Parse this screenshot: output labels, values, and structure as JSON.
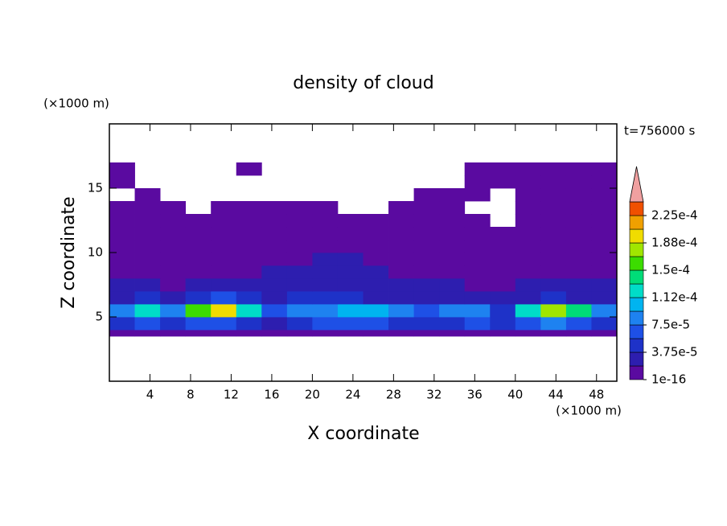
{
  "chart_data": {
    "type": "contour",
    "title": "density of cloud",
    "xlabel": "X coordinate",
    "ylabel": "Z coordinate",
    "x_unit_label": "(×1000 m)",
    "y_unit_label": "(×1000 m)",
    "time_label": "t=756000 s",
    "xlim": [
      0,
      50
    ],
    "ylim": [
      0,
      20
    ],
    "xticks": [
      4,
      8,
      12,
      16,
      20,
      24,
      28,
      32,
      36,
      40,
      44,
      48
    ],
    "yticks": [
      5,
      10,
      15
    ],
    "x_edges": [
      0,
      2.5,
      5,
      7.5,
      10,
      12.5,
      15,
      17.5,
      20,
      22.5,
      25,
      27.5,
      30,
      32.5,
      35,
      37.5,
      40,
      42.5,
      45,
      47.5,
      50
    ],
    "z_edges": [
      3.5,
      4,
      5,
      6,
      7,
      8,
      9,
      10,
      11,
      12,
      13,
      14,
      15,
      16,
      17
    ],
    "field": [
      [
        8e-06,
        8e-06,
        8e-06,
        8e-06,
        8e-06,
        8e-06,
        8e-06,
        8e-06,
        8e-06,
        8e-06,
        8e-06,
        8e-06,
        8e-06,
        8e-06,
        8e-06,
        8e-06,
        8e-06,
        8e-06,
        8e-06,
        8e-06
      ],
      [
        4e-05,
        6e-05,
        5e-05,
        7e-05,
        6e-05,
        4e-05,
        3e-05,
        5e-05,
        6e-05,
        7e-05,
        6e-05,
        5e-05,
        4e-05,
        5e-05,
        6e-05,
        4e-05,
        6e-05,
        8e-05,
        7e-05,
        5e-05
      ],
      [
        9e-05,
        0.00012,
        8e-05,
        0.00016,
        0.00019,
        0.00013,
        6e-05,
        8e-05,
        9e-05,
        0.00011,
        0.0001,
        8e-05,
        6e-05,
        9e-05,
        8e-05,
        5e-05,
        0.00012,
        0.00017,
        0.00014,
        9e-05
      ],
      [
        3e-05,
        4e-05,
        3e-05,
        5e-05,
        6e-05,
        5e-05,
        3e-05,
        4e-05,
        5e-05,
        4e-05,
        3e-05,
        3e-05,
        2.5e-05,
        3e-05,
        2.5e-05,
        2e-05,
        3e-05,
        4e-05,
        3e-05,
        2.5e-05
      ],
      [
        2e-05,
        2.2e-05,
        1.8e-05,
        2.5e-05,
        2.4e-05,
        2.6e-05,
        2.2e-05,
        2.8e-05,
        2.4e-05,
        3e-05,
        2.5e-05,
        2e-05,
        1.9e-05,
        2.1e-05,
        1.7e-05,
        1.6e-05,
        2e-05,
        2.2e-05,
        2e-05,
        1.9e-05
      ],
      [
        1.2e-05,
        1.5e-05,
        1.3e-05,
        1.6e-05,
        1.4e-05,
        1.7e-05,
        1.9e-05,
        2.1e-05,
        2e-05,
        2.3e-05,
        2e-05,
        1.6e-05,
        1.4e-05,
        1.5e-05,
        1.3e-05,
        1.2e-05,
        1.4e-05,
        1.6e-05,
        1.5e-05,
        1.3e-05
      ],
      [
        8e-06,
        8e-06,
        8e-06,
        8e-06,
        8e-06,
        8e-06,
        8e-06,
        8e-06,
        1.9e-05,
        1.9e-05,
        8e-06,
        8e-06,
        8e-06,
        8e-06,
        8e-06,
        8e-06,
        8e-06,
        8e-06,
        8e-06,
        8e-06
      ],
      [
        5e-06,
        5e-06,
        5e-06,
        5e-06,
        5e-06,
        5e-06,
        5e-06,
        5e-06,
        5e-06,
        5e-06,
        5e-06,
        5e-06,
        5e-06,
        5e-06,
        5e-06,
        5e-06,
        5e-06,
        5e-06,
        5e-06,
        5e-06
      ],
      [
        4e-06,
        4e-06,
        4e-06,
        4e-06,
        4e-06,
        4e-06,
        4e-06,
        4e-06,
        4e-06,
        4e-06,
        4e-06,
        4e-06,
        4e-06,
        4e-06,
        4e-06,
        4e-06,
        4e-06,
        4e-06,
        4e-06,
        4e-06
      ],
      [
        3e-06,
        3e-06,
        3e-06,
        3e-06,
        3e-06,
        3e-06,
        3e-06,
        3e-06,
        3e-06,
        3e-06,
        3e-06,
        3e-06,
        3e-06,
        3e-06,
        3e-06,
        null,
        3e-06,
        3e-06,
        3e-06,
        3e-06
      ],
      [
        2e-06,
        2e-06,
        2e-06,
        null,
        2e-06,
        2e-06,
        2e-06,
        2e-06,
        2e-06,
        null,
        null,
        2e-06,
        2e-06,
        2e-06,
        null,
        null,
        2e-06,
        2e-06,
        2e-06,
        2e-06
      ],
      [
        null,
        2e-06,
        null,
        null,
        null,
        null,
        null,
        null,
        null,
        null,
        null,
        null,
        2e-06,
        2e-06,
        2e-06,
        null,
        2e-06,
        2e-06,
        2e-06,
        2e-06
      ],
      [
        2e-06,
        null,
        null,
        null,
        null,
        null,
        null,
        null,
        null,
        null,
        null,
        null,
        null,
        null,
        2e-06,
        2e-06,
        2e-06,
        2e-06,
        2e-06,
        2e-06
      ],
      [
        2e-06,
        null,
        null,
        null,
        null,
        2e-06,
        null,
        null,
        null,
        null,
        null,
        null,
        null,
        null,
        2e-06,
        2e-06,
        2e-06,
        2e-06,
        2e-06,
        2e-06
      ]
    ],
    "levels": [
      1e-16,
      1.875e-05,
      3.75e-05,
      5.625e-05,
      7.5e-05,
      9.375e-05,
      0.0001125,
      0.00013125,
      0.00015,
      0.00016875,
      0.0001875,
      0.00020625,
      0.000225,
      0.00024375
    ],
    "colors": [
      "#5a0aa0",
      "#2d1eaf",
      "#1e32c8",
      "#1e50e6",
      "#1e82f0",
      "#00b4f0",
      "#00dcc8",
      "#00dc78",
      "#3cdc00",
      "#a0e600",
      "#f0dc00",
      "#f0a000",
      "#f05000"
    ],
    "over_color": "#f0a0a0",
    "colorbar_ticks": [
      {
        "value": 1e-16,
        "label": "1e-16"
      },
      {
        "value": 3.75e-05,
        "label": "3.75e-5"
      },
      {
        "value": 7.5e-05,
        "label": "7.5e-5"
      },
      {
        "value": 0.0001125,
        "label": "1.12e-4"
      },
      {
        "value": 0.00015,
        "label": "1.5e-4"
      },
      {
        "value": 0.0001875,
        "label": "1.88e-4"
      },
      {
        "value": 0.000225,
        "label": "2.25e-4"
      }
    ]
  }
}
